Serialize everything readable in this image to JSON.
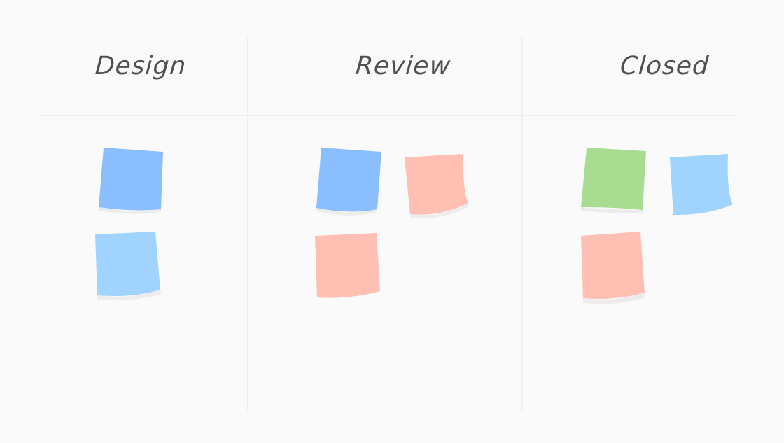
{
  "columns": [
    {
      "title": "Design",
      "notes": [
        {
          "color": "#8bbefe"
        },
        {
          "color": "#a0d3fe"
        }
      ]
    },
    {
      "title": "Review",
      "notes": [
        {
          "color": "#8bbefe"
        },
        {
          "color": "#ffbfb2"
        },
        {
          "color": "#ffbfb2"
        }
      ]
    },
    {
      "title": "Closed",
      "notes": [
        {
          "color": "#a8dc90"
        },
        {
          "color": "#a0d3fe"
        },
        {
          "color": "#ffbfb2"
        }
      ]
    }
  ],
  "colors": {
    "background": "#fafafa",
    "divider": "#ebebeb",
    "title": "#505050",
    "shadow": "#ececec"
  }
}
